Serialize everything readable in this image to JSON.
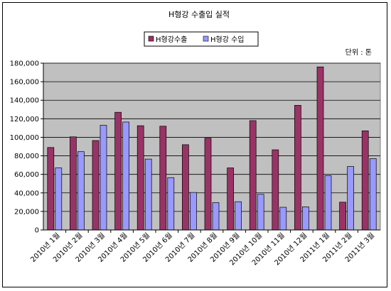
{
  "chart_data": {
    "type": "bar",
    "title": "H형강 수출입 실적",
    "unit_label": "단위 : 톤",
    "legend_position": "top-center",
    "grid": true,
    "ylim": [
      0,
      180000
    ],
    "yticks": [
      0,
      20000,
      40000,
      60000,
      80000,
      100000,
      120000,
      140000,
      160000,
      180000
    ],
    "ytick_labels": [
      "0",
      "20,000",
      "40,000",
      "60,000",
      "80,000",
      "100,000",
      "120,000",
      "140,000",
      "160,000",
      "180,000"
    ],
    "categories": [
      "2010년 1월",
      "2010년 2월",
      "2010년 3월",
      "2010년 4월",
      "2010년 5월",
      "2010년 6월",
      "2010년 7월",
      "2010년 8월",
      "2010년 9월",
      "2010년 10월",
      "2010년 11월",
      "2010년 12월",
      "2011년 1월",
      "2011년 2월",
      "2011년 3월"
    ],
    "series": [
      {
        "name": "H형강수출",
        "color": "#993366",
        "values": [
          89000,
          100500,
          96500,
          127000,
          112500,
          112000,
          92000,
          99000,
          67000,
          118000,
          86500,
          134500,
          176000,
          30000,
          107000
        ]
      },
      {
        "name": "H형강 수입",
        "color": "#9999ff",
        "values": [
          67000,
          84500,
          113000,
          116500,
          76500,
          56500,
          40500,
          29500,
          30500,
          38500,
          24500,
          25000,
          58500,
          68500,
          77000
        ]
      }
    ],
    "plot_background": "#c0c0c0"
  }
}
